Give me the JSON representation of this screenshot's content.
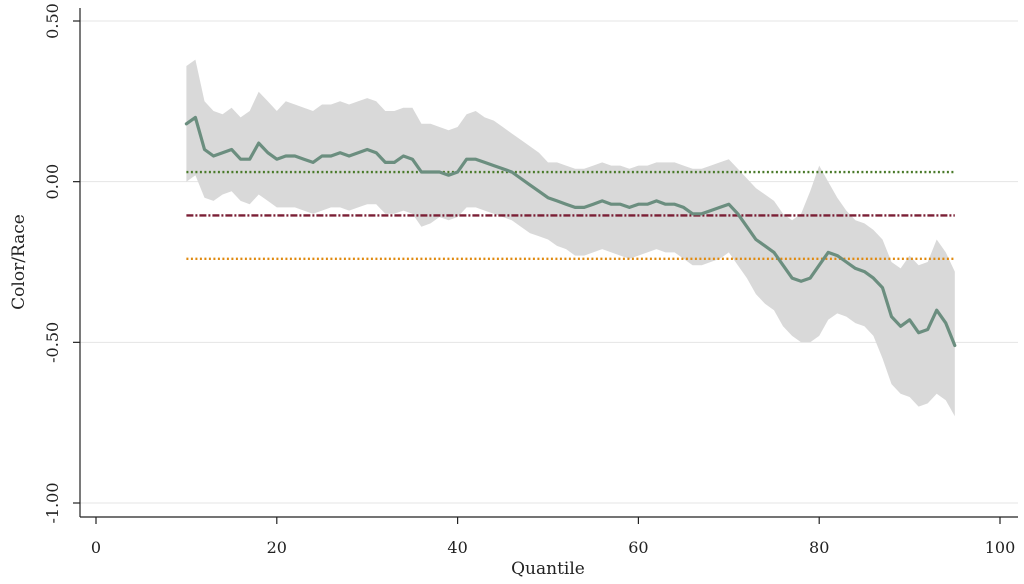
{
  "chart_data": {
    "type": "line",
    "xlabel": "Quantile",
    "ylabel": "Color/Race",
    "xlim": [
      0,
      100
    ],
    "ylim": [
      -1.0,
      0.5
    ],
    "x_ticks": [
      0,
      20,
      40,
      60,
      80,
      100
    ],
    "x_tick_labels": [
      "0",
      "20",
      "40",
      "60",
      "80",
      "100"
    ],
    "y_ticks": [
      -1.0,
      -0.5,
      0.0,
      0.5
    ],
    "y_tick_labels": [
      "-1.00",
      "-0.50",
      "0.00",
      "0.50"
    ],
    "grid": "horizontal",
    "colors": {
      "estimate": "#6b8e7f",
      "band": "#d9d9d9",
      "green_ref": "#4a7a2a",
      "maroon_ref": "#7a1f35",
      "orange_ref": "#e08a10"
    },
    "reference_lines": [
      {
        "name": "green-dotted-reference",
        "y": 0.03,
        "x_start": 10,
        "x_end": 95
      },
      {
        "name": "maroon-dashdot-reference",
        "y": -0.105,
        "x_start": 10,
        "x_end": 95
      },
      {
        "name": "orange-dotted-reference",
        "y": -0.24,
        "x_start": 10,
        "x_end": 95
      }
    ],
    "series": [
      {
        "name": "quantile-estimate",
        "x": [
          10,
          11,
          12,
          13,
          14,
          15,
          16,
          17,
          18,
          19,
          20,
          21,
          22,
          23,
          24,
          25,
          26,
          27,
          28,
          29,
          30,
          31,
          32,
          33,
          34,
          35,
          36,
          37,
          38,
          39,
          40,
          41,
          42,
          43,
          44,
          45,
          46,
          47,
          48,
          49,
          50,
          51,
          52,
          53,
          54,
          55,
          56,
          57,
          58,
          59,
          60,
          61,
          62,
          63,
          64,
          65,
          66,
          67,
          68,
          69,
          70,
          71,
          72,
          73,
          74,
          75,
          76,
          77,
          78,
          79,
          80,
          81,
          82,
          83,
          84,
          85,
          86,
          87,
          88,
          89,
          90,
          91,
          92,
          93,
          94,
          95
        ],
        "y": [
          0.18,
          0.2,
          0.1,
          0.08,
          0.09,
          0.1,
          0.07,
          0.07,
          0.12,
          0.09,
          0.07,
          0.08,
          0.08,
          0.07,
          0.06,
          0.08,
          0.08,
          0.09,
          0.08,
          0.09,
          0.1,
          0.09,
          0.06,
          0.06,
          0.08,
          0.07,
          0.03,
          0.03,
          0.03,
          0.02,
          0.03,
          0.07,
          0.07,
          0.06,
          0.05,
          0.04,
          0.03,
          0.01,
          -0.01,
          -0.03,
          -0.05,
          -0.06,
          -0.07,
          -0.08,
          -0.08,
          -0.07,
          -0.06,
          -0.07,
          -0.07,
          -0.08,
          -0.07,
          -0.07,
          -0.06,
          -0.07,
          -0.07,
          -0.08,
          -0.1,
          -0.1,
          -0.09,
          -0.08,
          -0.07,
          -0.1,
          -0.14,
          -0.18,
          -0.2,
          -0.22,
          -0.26,
          -0.3,
          -0.31,
          -0.3,
          -0.26,
          -0.22,
          -0.23,
          -0.25,
          -0.27,
          -0.28,
          -0.3,
          -0.33,
          -0.42,
          -0.45,
          -0.43,
          -0.47,
          -0.46,
          -0.4,
          -0.44,
          -0.51
        ]
      }
    ],
    "confidence_band": {
      "x": [
        10,
        11,
        12,
        13,
        14,
        15,
        16,
        17,
        18,
        19,
        20,
        21,
        22,
        23,
        24,
        25,
        26,
        27,
        28,
        29,
        30,
        31,
        32,
        33,
        34,
        35,
        36,
        37,
        38,
        39,
        40,
        41,
        42,
        43,
        44,
        45,
        46,
        47,
        48,
        49,
        50,
        51,
        52,
        53,
        54,
        55,
        56,
        57,
        58,
        59,
        60,
        61,
        62,
        63,
        64,
        65,
        66,
        67,
        68,
        69,
        70,
        71,
        72,
        73,
        74,
        75,
        76,
        77,
        78,
        79,
        80,
        81,
        82,
        83,
        84,
        85,
        86,
        87,
        88,
        89,
        90,
        91,
        92,
        93,
        94,
        95
      ],
      "upper": [
        0.36,
        0.38,
        0.25,
        0.22,
        0.21,
        0.23,
        0.2,
        0.22,
        0.28,
        0.25,
        0.22,
        0.25,
        0.24,
        0.23,
        0.22,
        0.24,
        0.24,
        0.25,
        0.24,
        0.25,
        0.26,
        0.25,
        0.22,
        0.22,
        0.23,
        0.23,
        0.18,
        0.18,
        0.17,
        0.16,
        0.17,
        0.21,
        0.22,
        0.2,
        0.19,
        0.17,
        0.15,
        0.13,
        0.11,
        0.09,
        0.06,
        0.06,
        0.05,
        0.04,
        0.04,
        0.05,
        0.06,
        0.05,
        0.05,
        0.04,
        0.05,
        0.05,
        0.06,
        0.06,
        0.06,
        0.05,
        0.04,
        0.04,
        0.05,
        0.06,
        0.07,
        0.04,
        0.01,
        -0.02,
        -0.04,
        -0.06,
        -0.1,
        -0.12,
        -0.1,
        -0.03,
        0.05,
        0.0,
        -0.05,
        -0.09,
        -0.12,
        -0.13,
        -0.15,
        -0.18,
        -0.25,
        -0.27,
        -0.23,
        -0.26,
        -0.25,
        -0.18,
        -0.22,
        -0.28
      ],
      "lower": [
        0.0,
        0.02,
        -0.05,
        -0.06,
        -0.04,
        -0.03,
        -0.06,
        -0.07,
        -0.04,
        -0.06,
        -0.08,
        -0.08,
        -0.08,
        -0.09,
        -0.1,
        -0.09,
        -0.08,
        -0.08,
        -0.09,
        -0.08,
        -0.07,
        -0.07,
        -0.1,
        -0.1,
        -0.09,
        -0.1,
        -0.14,
        -0.13,
        -0.11,
        -0.12,
        -0.11,
        -0.08,
        -0.08,
        -0.09,
        -0.1,
        -0.11,
        -0.12,
        -0.14,
        -0.16,
        -0.17,
        -0.18,
        -0.2,
        -0.21,
        -0.23,
        -0.23,
        -0.22,
        -0.21,
        -0.22,
        -0.23,
        -0.24,
        -0.23,
        -0.22,
        -0.21,
        -0.22,
        -0.22,
        -0.24,
        -0.26,
        -0.26,
        -0.25,
        -0.24,
        -0.22,
        -0.26,
        -0.3,
        -0.35,
        -0.38,
        -0.4,
        -0.45,
        -0.48,
        -0.5,
        -0.5,
        -0.48,
        -0.43,
        -0.41,
        -0.42,
        -0.44,
        -0.45,
        -0.48,
        -0.55,
        -0.63,
        -0.66,
        -0.67,
        -0.7,
        -0.69,
        -0.66,
        -0.68,
        -0.73
      ]
    }
  }
}
